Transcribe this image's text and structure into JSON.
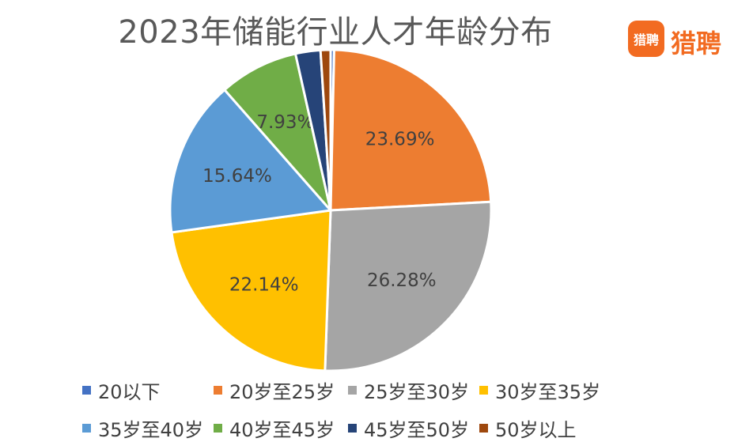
{
  "brand": {
    "name": "猎聘",
    "icon_text": "猎聘",
    "color": "#f26b21"
  },
  "chart_data": {
    "type": "pie",
    "title": "2023年储能行业人才年龄分布",
    "legend_position": "bottom",
    "slices": [
      {
        "label": "20以下",
        "value": 0.35,
        "color": "#4472c4",
        "show_label": false,
        "value_label": ""
      },
      {
        "label": "20岁至25岁",
        "value": 23.69,
        "color": "#ed7d31",
        "show_label": true,
        "value_label": "23.69%"
      },
      {
        "label": "25岁至30岁",
        "value": 26.28,
        "color": "#a5a5a5",
        "show_label": true,
        "value_label": "26.28%"
      },
      {
        "label": "30岁至35岁",
        "value": 22.14,
        "color": "#ffc000",
        "show_label": true,
        "value_label": "22.14%"
      },
      {
        "label": "35岁至40岁",
        "value": 15.64,
        "color": "#5b9bd5",
        "show_label": true,
        "value_label": "15.64%"
      },
      {
        "label": "40岁至45岁",
        "value": 7.93,
        "color": "#70ad47",
        "show_label": true,
        "value_label": "7.93%"
      },
      {
        "label": "45岁至50岁",
        "value": 2.5,
        "color": "#264478",
        "show_label": false,
        "value_label": ""
      },
      {
        "label": "50岁以上",
        "value": 1.0,
        "color": "#9e480e",
        "show_label": false,
        "value_label": ""
      }
    ]
  }
}
